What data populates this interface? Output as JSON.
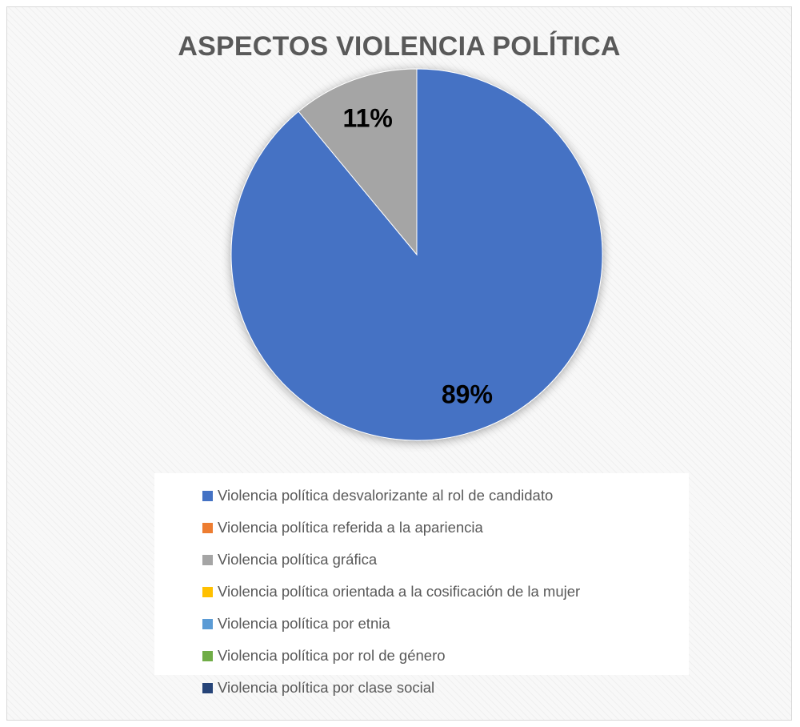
{
  "chart_data": {
    "type": "pie",
    "title": "ASPECTOS VIOLENCIA POLÍTICA",
    "legend_position": "bottom",
    "slices": [
      {
        "label": "Violencia política desvalorizante al rol de candidato",
        "value": 89,
        "data_label": "89%",
        "color": "#4472C4"
      },
      {
        "label": "Violencia política referida a la apariencia",
        "value": 0,
        "data_label": "",
        "color": "#ED7D31"
      },
      {
        "label": "Violencia política gráfica",
        "value": 11,
        "data_label": "11%",
        "color": "#A5A5A5"
      },
      {
        "label": "Violencia política orientada a la cosificación de la mujer",
        "value": 0,
        "data_label": "",
        "color": "#FFC000"
      },
      {
        "label": "Violencia política por etnia",
        "value": 0,
        "data_label": "",
        "color": "#5B9BD5"
      },
      {
        "label": "Violencia política por rol de género",
        "value": 0,
        "data_label": "",
        "color": "#70AD47"
      },
      {
        "label": "Violencia política por clase social",
        "value": 0,
        "data_label": "",
        "color": "#264478"
      }
    ]
  }
}
